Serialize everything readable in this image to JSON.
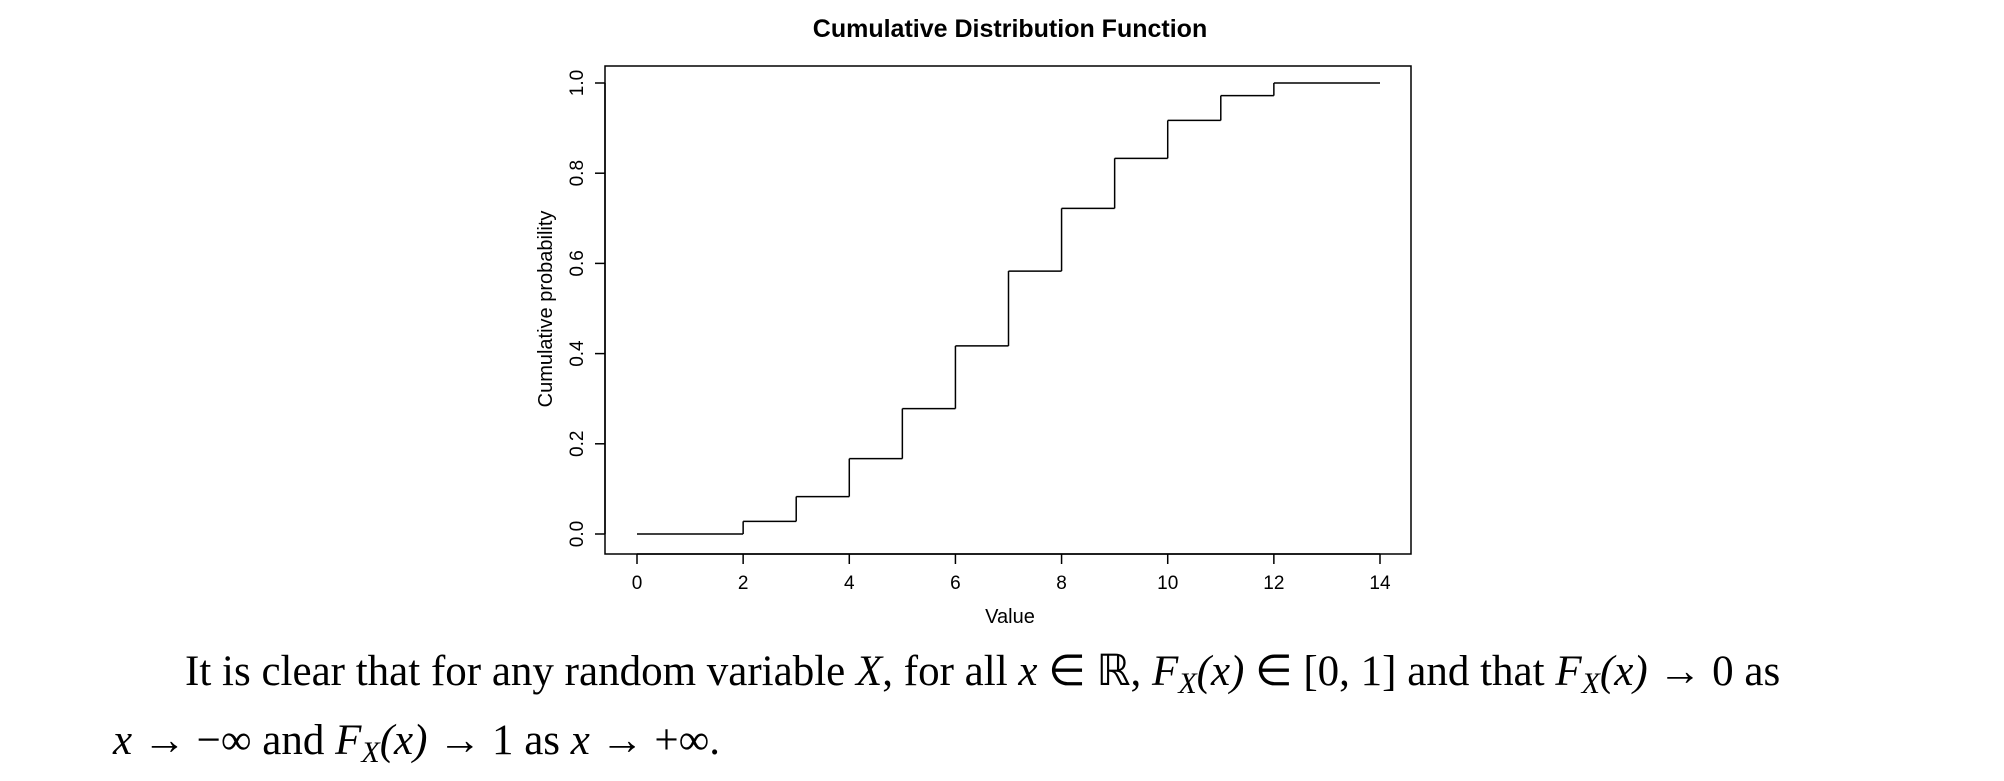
{
  "chart_data": {
    "type": "step",
    "title": "Cumulative Distribution Function",
    "xlabel": "Value",
    "ylabel": "Cumulative probability",
    "xlim": [
      0,
      14
    ],
    "ylim": [
      0,
      1
    ],
    "x_ticks": [
      "0",
      "2",
      "4",
      "6",
      "8",
      "10",
      "12",
      "14"
    ],
    "y_ticks": [
      "0.0",
      "0.2",
      "0.4",
      "0.6",
      "0.8",
      "1.0"
    ],
    "grid": false,
    "legend": "none",
    "steps": [
      {
        "x_start": 0,
        "x_end": 2,
        "y": 0.0
      },
      {
        "x_start": 2,
        "x_end": 3,
        "y": 0.028
      },
      {
        "x_start": 3,
        "x_end": 4,
        "y": 0.083
      },
      {
        "x_start": 4,
        "x_end": 5,
        "y": 0.167
      },
      {
        "x_start": 5,
        "x_end": 6,
        "y": 0.278
      },
      {
        "x_start": 6,
        "x_end": 7,
        "y": 0.417
      },
      {
        "x_start": 7,
        "x_end": 8,
        "y": 0.583
      },
      {
        "x_start": 8,
        "x_end": 9,
        "y": 0.722
      },
      {
        "x_start": 9,
        "x_end": 10,
        "y": 0.833
      },
      {
        "x_start": 10,
        "x_end": 11,
        "y": 0.917
      },
      {
        "x_start": 11,
        "x_end": 12,
        "y": 0.972
      },
      {
        "x_start": 12,
        "x_end": 14,
        "y": 1.0
      }
    ]
  },
  "paragraph": {
    "t1": "It is clear that for any random variable ",
    "X1": "X",
    "t2": ", for all ",
    "x1": "x",
    "in1": " ∈ ",
    "R": "ℝ",
    "comma1": ", ",
    "F1": "F",
    "subX1": "X",
    "arg1": "(x)",
    "in2": " ∈ ",
    "interval": "[0, 1]",
    "t3": " and that ",
    "F2": "F",
    "subX2": "X",
    "arg2": "(x)",
    "lim1": " → 0 as",
    "x2": "x",
    "to1": " → −∞",
    "t4": " and ",
    "F3": "F",
    "subX3": "X",
    "arg3": "(x)",
    "lim2": " → 1 as ",
    "x3": "x",
    "to2": " → +∞",
    "end": "."
  }
}
